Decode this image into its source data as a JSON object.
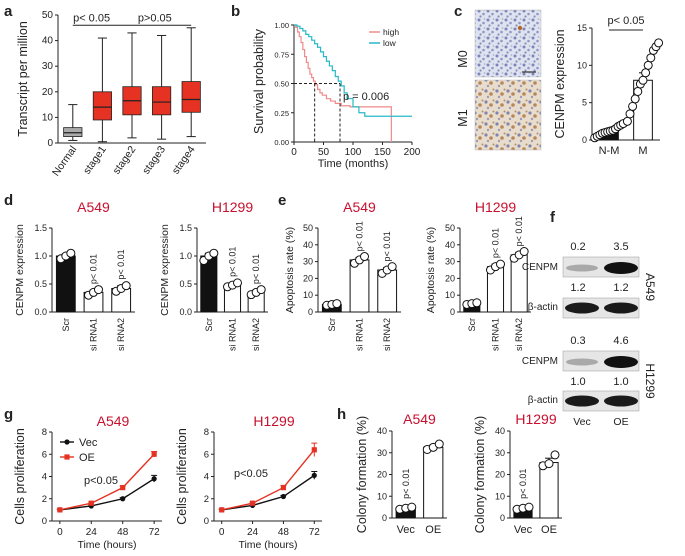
{
  "panels": {
    "a": {
      "label": "a"
    },
    "b": {
      "label": "b"
    },
    "c": {
      "label": "c"
    },
    "d": {
      "label": "d"
    },
    "e": {
      "label": "e"
    },
    "f": {
      "label": "f"
    },
    "g": {
      "label": "g"
    },
    "h": {
      "label": "h"
    }
  },
  "colors": {
    "red": "#e53222",
    "black": "#111111",
    "title": "#c8102e",
    "high": "#f08a8a",
    "low": "#27b9c7"
  },
  "blot": {
    "a549": {
      "title": "A549",
      "cenpm_label": "CENPM",
      "actin_label": "β-actin",
      "cenpm_values": [
        "0.2",
        "3.5"
      ],
      "actin_values": [
        "1.2",
        "1.2"
      ]
    },
    "h1299": {
      "title": "H1299",
      "cenpm_label": "CENPM",
      "actin_label": "β-actin",
      "cenpm_values": [
        "0.3",
        "4.6"
      ],
      "actin_values": [
        "1.0",
        "1.0"
      ]
    },
    "lanes": [
      "Vec",
      "OE"
    ]
  },
  "ihc": {
    "top_label": "M0",
    "bottom_label": "M1"
  },
  "chart_data": [
    {
      "id": "a",
      "type": "box",
      "ylabel": "Transcript per million",
      "ylim": [
        0,
        50
      ],
      "yticks": [
        0,
        10,
        20,
        30,
        40,
        50
      ],
      "categories": [
        "Normal",
        "stage1",
        "stage2",
        "stage3",
        "stage4"
      ],
      "colors": [
        "#aaaaaa",
        "#e53222",
        "#e53222",
        "#e53222",
        "#e53222"
      ],
      "boxes": [
        {
          "min": 1,
          "q1": 2.5,
          "median": 4,
          "q3": 6,
          "max": 15
        },
        {
          "min": 0.5,
          "q1": 9,
          "median": 14,
          "q3": 20,
          "max": 41
        },
        {
          "min": 2,
          "q1": 11,
          "median": 16.5,
          "q3": 22,
          "max": 43
        },
        {
          "min": 1.5,
          "q1": 11,
          "median": 16,
          "q3": 22,
          "max": 42
        },
        {
          "min": 2.5,
          "q1": 12,
          "median": 17,
          "q3": 24,
          "max": 45
        }
      ],
      "annotations": [
        "p< 0.05",
        "p>0.05"
      ]
    },
    {
      "id": "b",
      "type": "line",
      "subtype": "kaplan-meier",
      "xlabel": "Time (months)",
      "ylabel": "Survival probability",
      "xlim": [
        0,
        200
      ],
      "ylim": [
        0,
        1
      ],
      "xticks": [
        0,
        50,
        100,
        150,
        200
      ],
      "yticks": [
        "0.00",
        "0.25",
        "0.50",
        "0.75",
        "1.00"
      ],
      "legend": [
        "high",
        "low"
      ],
      "median_times": [
        35,
        78
      ],
      "annotation": "p = 0.006",
      "series": [
        {
          "name": "high",
          "x": [
            0,
            3,
            6,
            9,
            12,
            15,
            18,
            21,
            24,
            27,
            30,
            33,
            36,
            40,
            44,
            48,
            55,
            62,
            70,
            80,
            95,
            110,
            130,
            150,
            165
          ],
          "y": [
            1,
            0.98,
            0.94,
            0.9,
            0.85,
            0.79,
            0.73,
            0.68,
            0.63,
            0.58,
            0.55,
            0.52,
            0.49,
            0.45,
            0.42,
            0.4,
            0.37,
            0.35,
            0.33,
            0.31,
            0.3,
            0.3,
            0.3,
            0.3,
            0
          ]
        },
        {
          "name": "low",
          "x": [
            0,
            5,
            10,
            15,
            20,
            25,
            30,
            35,
            40,
            45,
            50,
            55,
            60,
            65,
            70,
            75,
            80,
            85,
            90,
            100,
            110,
            120,
            140,
            160,
            180,
            200
          ],
          "y": [
            1,
            0.99,
            0.97,
            0.95,
            0.92,
            0.9,
            0.87,
            0.84,
            0.81,
            0.77,
            0.73,
            0.69,
            0.65,
            0.61,
            0.56,
            0.52,
            0.48,
            0.42,
            0.37,
            0.3,
            0.25,
            0.22,
            0.22,
            0.22,
            0.22,
            0.22
          ]
        }
      ]
    },
    {
      "id": "c",
      "type": "bar",
      "ylabel": "CENPM expression",
      "ylim": [
        0,
        15
      ],
      "yticks": [
        0,
        5,
        10,
        15
      ],
      "categories": [
        "N-M",
        "M"
      ],
      "values": [
        1.2,
        8.0
      ],
      "errors": [
        0.3,
        1.0
      ],
      "points": [
        [
          0.3,
          0.5,
          0.7,
          0.9,
          1.0,
          1.1,
          1.2,
          1.3,
          1.5,
          1.8,
          2.0,
          2.2
        ],
        [
          2.5,
          3.5,
          4.5,
          5.5,
          6.5,
          7.5,
          8.0,
          9.0,
          10.0,
          11.0,
          12.0,
          12.5,
          13.0
        ]
      ],
      "annotation": "p< 0.05"
    },
    {
      "id": "d1",
      "type": "bar",
      "title": "A549",
      "ylabel": "CENPM expression",
      "ylim": [
        0,
        1.5
      ],
      "yticks": [
        "0.0",
        "0.5",
        "1.0",
        "1.5"
      ],
      "categories": [
        "Scr",
        "si RNA1",
        "si RNA2"
      ],
      "values": [
        1.0,
        0.35,
        0.42
      ],
      "errors": [
        0.04,
        0.04,
        0.05
      ],
      "points": [
        [
          0.95,
          1.0,
          1.05
        ],
        [
          0.3,
          0.35,
          0.4
        ],
        [
          0.37,
          0.42,
          0.47
        ]
      ],
      "annotations": [
        "p< 0.01",
        "p< 0.01"
      ]
    },
    {
      "id": "d2",
      "type": "bar",
      "title": "H1299",
      "ylabel": "CENPM expression",
      "ylim": [
        0,
        1.5
      ],
      "yticks": [
        "0.0",
        "0.5",
        "1.0",
        "1.5"
      ],
      "categories": [
        "Scr",
        "si RNA1",
        "si RNA2"
      ],
      "values": [
        1.0,
        0.48,
        0.35
      ],
      "errors": [
        0.05,
        0.04,
        0.04
      ],
      "points": [
        [
          0.92,
          1.0,
          1.05
        ],
        [
          0.45,
          0.48,
          0.52
        ],
        [
          0.31,
          0.35,
          0.4
        ]
      ],
      "annotations": [
        "p< 0.01",
        "p< 0.01"
      ]
    },
    {
      "id": "e1",
      "type": "bar",
      "title": "A549",
      "ylabel": "Apoptosis rate (%)",
      "ylim": [
        0,
        50
      ],
      "yticks": [
        0,
        10,
        20,
        30,
        40,
        50
      ],
      "categories": [
        "Scr",
        "si RNA1",
        "si RNA2"
      ],
      "values": [
        4.5,
        31,
        25
      ],
      "errors": [
        0.6,
        1.5,
        1.5
      ],
      "points": [
        [
          4,
          4.5,
          5
        ],
        [
          29,
          31,
          33
        ],
        [
          23,
          25,
          27
        ]
      ],
      "annotations": [
        "p< 0.01",
        "p< 0.01"
      ]
    },
    {
      "id": "e2",
      "type": "bar",
      "title": "H1299",
      "ylabel": "Apoptosis rate (%)",
      "ylim": [
        0,
        50
      ],
      "yticks": [
        0,
        10,
        20,
        30,
        40,
        50
      ],
      "categories": [
        "Scr",
        "si RNA1",
        "si RNA2"
      ],
      "values": [
        5,
        27,
        34
      ],
      "errors": [
        0.6,
        1.5,
        1.5
      ],
      "points": [
        [
          4.5,
          5,
          5.5
        ],
        [
          25,
          27,
          28.5
        ],
        [
          32,
          34,
          36
        ]
      ],
      "annotations": [
        "p< 0.01",
        "p< 0.01"
      ]
    },
    {
      "id": "g1",
      "type": "line",
      "title": "A549",
      "xlabel": "Time (hours)",
      "ylabel": "Cells proliferation",
      "xlim": [
        -6,
        78
      ],
      "ylim": [
        0,
        8
      ],
      "xticks": [
        0,
        24,
        48,
        72
      ],
      "yticks": [
        0,
        2,
        4,
        6,
        8
      ],
      "legend": [
        "Vec",
        "OE"
      ],
      "annotation": "p<0.05",
      "series": [
        {
          "name": "Vec",
          "x": [
            0,
            24,
            48,
            72
          ],
          "y": [
            1.0,
            1.35,
            2.0,
            3.8
          ],
          "err": [
            0.05,
            0.08,
            0.1,
            0.3
          ]
        },
        {
          "name": "OE",
          "x": [
            0,
            24,
            48,
            72
          ],
          "y": [
            1.0,
            1.6,
            3.0,
            6.0
          ],
          "err": [
            0.05,
            0.1,
            0.15,
            0.25
          ]
        }
      ]
    },
    {
      "id": "g2",
      "type": "line",
      "title": "H1299",
      "xlabel": "Time (hours)",
      "ylabel": "Cells proliferation",
      "xlim": [
        -6,
        78
      ],
      "ylim": [
        0,
        8
      ],
      "xticks": [
        0,
        24,
        48,
        72
      ],
      "yticks": [
        0,
        2,
        4,
        6,
        8
      ],
      "annotation": "p<0.05",
      "series": [
        {
          "name": "Vec",
          "x": [
            0,
            24,
            48,
            72
          ],
          "y": [
            1.0,
            1.4,
            2.2,
            4.1
          ],
          "err": [
            0.05,
            0.1,
            0.1,
            0.35
          ]
        },
        {
          "name": "OE",
          "x": [
            0,
            24,
            48,
            72
          ],
          "y": [
            1.0,
            1.6,
            3.0,
            6.4
          ],
          "err": [
            0.05,
            0.1,
            0.2,
            0.6
          ]
        }
      ]
    },
    {
      "id": "h1",
      "type": "bar",
      "title": "A549",
      "ylabel": "Colony formation (%)",
      "ylim": [
        0,
        40
      ],
      "yticks": [
        0,
        10,
        20,
        30,
        40
      ],
      "categories": [
        "Vec",
        "OE"
      ],
      "values": [
        4.5,
        32.5
      ],
      "errors": [
        0.6,
        1.0
      ],
      "points": [
        [
          4,
          4.5,
          5
        ],
        [
          31.5,
          32.5,
          34
        ]
      ],
      "annotation": "p< 0.01"
    },
    {
      "id": "h2",
      "type": "bar",
      "title": "H1299",
      "ylabel": "Colony formation (%)",
      "ylim": [
        0,
        40
      ],
      "yticks": [
        0,
        10,
        20,
        30,
        40
      ],
      "categories": [
        "Vec",
        "OE"
      ],
      "values": [
        4.5,
        25.5
      ],
      "errors": [
        0.6,
        2.0
      ],
      "points": [
        [
          4,
          4.5,
          5
        ],
        [
          24,
          25,
          29
        ]
      ],
      "annotation": "p< 0.01"
    }
  ]
}
